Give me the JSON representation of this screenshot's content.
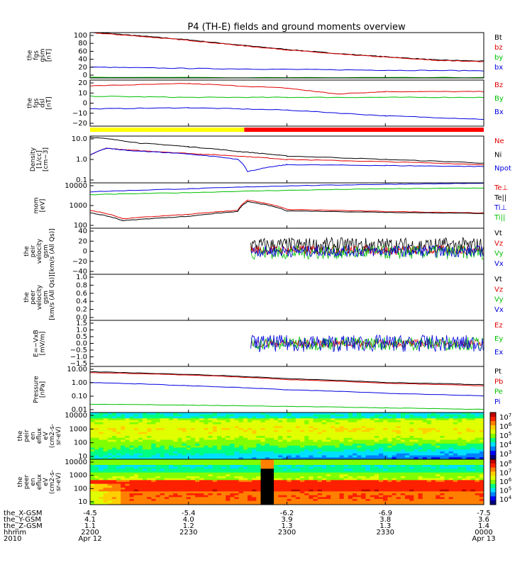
{
  "chart_data": {
    "type": "line",
    "title": "P4 (TH-E) fields and ground moments overview",
    "time_axis": {
      "ticks_hhmm": [
        "2200",
        "2230",
        "2300",
        "2330",
        "0000"
      ],
      "tick_dates": [
        "Apr 12",
        "",
        "",
        "",
        "Apr 13"
      ],
      "row_labels": [
        "the_X-GSM",
        "the_Y-GSM",
        "the_Z-GSM",
        "hhmm",
        "2010"
      ],
      "x_gsm": [
        "-4.5",
        "-5.4",
        "-6.2",
        "-6.9",
        "-7.5"
      ],
      "y_gsm": [
        "4.1",
        "4.0",
        "3.9",
        "3.8",
        "3.6"
      ],
      "z_gsm": [
        "1.1",
        "1.2",
        "1.3",
        "1.3",
        "1.4"
      ]
    },
    "panels": [
      {
        "id": "fgs_gsm",
        "ylabel": [
          "the",
          "fgs",
          "gsm",
          "[nT]"
        ],
        "ylim": [
          0,
          100
        ],
        "ticks": [
          "100",
          "80",
          "60",
          "40",
          "20",
          "0"
        ],
        "series": [
          {
            "name": "Bt",
            "color": "#000000",
            "x": [
              2200,
              2215,
              2230,
              2245,
              2300,
              2315,
              2330,
              2345,
              2400
            ],
            "y": [
              101,
              93,
              84,
              73,
              63,
              54,
              47,
              40,
              37
            ]
          },
          {
            "name": "bz",
            "color": "#e00000",
            "x": [
              2200,
              2215,
              2230,
              2245,
              2300,
              2315,
              2330,
              2345,
              2400
            ],
            "y": [
              100,
              92,
              83,
              72,
              62,
              53,
              46,
              39,
              36
            ]
          },
          {
            "name": "by",
            "color": "#00c000",
            "x": [
              2200,
              2400
            ],
            "y": [
              1,
              1
            ]
          },
          {
            "name": "bx",
            "color": "#0000e0",
            "x": [
              2200,
              2230,
              2300,
              2330,
              2400
            ],
            "y": [
              24,
              21,
              19,
              17,
              16
            ]
          }
        ]
      },
      {
        "id": "fgs_dsl",
        "ylabel": [
          "the",
          "fgs",
          "dsl",
          "[nT]"
        ],
        "ylim": [
          -20,
          20
        ],
        "ticks": [
          "20",
          "10",
          "0",
          "−10",
          "−20"
        ],
        "series": [
          {
            "name": "Bz",
            "color": "#e00000",
            "x": [
              2200,
              2230,
              2300,
              2315,
              2330,
              2400
            ],
            "y": [
              15,
              17,
              13,
              8,
              10,
              10
            ]
          },
          {
            "name": "By",
            "color": "#00c000",
            "x": [
              2200,
              2230,
              2300,
              2330,
              2400
            ],
            "y": [
              6,
              5,
              5,
              5,
              5
            ]
          },
          {
            "name": "Bx",
            "color": "#0000e0",
            "x": [
              2200,
              2230,
              2300,
              2330,
              2400
            ],
            "y": [
              -5,
              -4,
              -6,
              -11,
              -14
            ]
          }
        ]
      },
      {
        "id": "density",
        "ylabel": [
          "Density",
          "[1/cc]",
          "[cm−3]"
        ],
        "scale": "log",
        "ylim": [
          0.1,
          10
        ],
        "ticks": [
          "10.0",
          "1.0",
          "0.1"
        ],
        "series": [
          {
            "name": "Ne",
            "color": "#e00000",
            "x": [
              2200,
              2205,
              2212,
              2230,
              2245,
              2300,
              2330,
              2400
            ],
            "y": [
              1.5,
              3.0,
              2.5,
              1.8,
              1.4,
              1.0,
              0.8,
              0.6
            ]
          },
          {
            "name": "Ni",
            "color": "#000000",
            "x": [
              2200,
              2215,
              2230,
              2245,
              2300,
              2330,
              2400
            ],
            "y": [
              9.0,
              5.0,
              3.5,
              2.2,
              1.4,
              1.0,
              0.7
            ]
          },
          {
            "name": "Npot",
            "color": "#0000e0",
            "x": [
              2200,
              2205,
              2212,
              2230,
              2245,
              2248,
              2300,
              2330,
              2400
            ],
            "y": [
              1.5,
              3.0,
              2.4,
              1.7,
              1.0,
              0.3,
              0.6,
              0.55,
              0.5
            ]
          }
        ]
      },
      {
        "id": "mom_temp",
        "ylabel": [
          "mom",
          "[eV]"
        ],
        "scale": "log",
        "ylim": [
          50,
          10000
        ],
        "ticks": [
          "10000",
          "1000",
          "100"
        ],
        "series": [
          {
            "name": "Te⊥",
            "color": "#e00000",
            "x": [
              2200,
              2210,
              2230,
              2245,
              2248,
              2300,
              2330,
              2400
            ],
            "y": [
              400,
              150,
              250,
              400,
              1300,
              450,
              350,
              300
            ]
          },
          {
            "name": "Te||",
            "color": "#000000",
            "x": [
              2200,
              2210,
              2230,
              2245,
              2248,
              2300,
              2330,
              2400
            ],
            "y": [
              300,
              120,
              200,
              350,
              1100,
              380,
              320,
              280
            ]
          },
          {
            "name": "Ti⊥",
            "color": "#0000e0",
            "x": [
              2200,
              2230,
              2300,
              2330,
              2400
            ],
            "y": [
              3500,
              5000,
              7000,
              8500,
              9500
            ]
          },
          {
            "name": "Ti||",
            "color": "#00c000",
            "x": [
              2200,
              2230,
              2300,
              2330,
              2400
            ],
            "y": [
              2500,
              3200,
              4200,
              5000,
              5500
            ]
          }
        ]
      },
      {
        "id": "peir_velocity",
        "ylabel": [
          "the",
          "peir",
          "velocity",
          "gsm",
          "[km/s (All Qs)]"
        ],
        "ylim": [
          -40,
          40
        ],
        "ticks": [
          "40",
          "20",
          "0",
          "−20",
          "−40"
        ],
        "noise_start": 2249,
        "series": [
          {
            "name": "Vt",
            "color": "#000000",
            "base": 10,
            "amp": 14
          },
          {
            "name": "Vz",
            "color": "#e00000",
            "base": 2,
            "amp": 8
          },
          {
            "name": "Vy",
            "color": "#00c000",
            "base": -2,
            "amp": 12
          },
          {
            "name": "Vx",
            "color": "#0000e0",
            "base": 0,
            "amp": 10
          }
        ]
      },
      {
        "id": "peer_velocity",
        "ylabel": [
          "the",
          "peer",
          "velocity",
          "gsm",
          "[km/s (All Qs)]"
        ],
        "ylim": [
          0,
          1
        ],
        "ticks": [
          "1.0",
          "0.8",
          "0.6",
          "0.4",
          "0.2",
          "0.0"
        ],
        "series": [
          {
            "name": "Vt",
            "color": "#000000"
          },
          {
            "name": "Vz",
            "color": "#e00000"
          },
          {
            "name": "Vy",
            "color": "#00c000"
          },
          {
            "name": "Vx",
            "color": "#0000e0"
          }
        ]
      },
      {
        "id": "efield",
        "ylabel": [
          "E=−VxB",
          "[mV/m]"
        ],
        "ylim": [
          -1.5,
          1.5
        ],
        "ticks": [
          "1.5",
          "1.0",
          "0.5",
          "0.0",
          "−0.5",
          "−1.0",
          "−1.5"
        ],
        "noise_start": 2249,
        "series": [
          {
            "name": "Ez",
            "color": "#e00000",
            "base": 0,
            "amp": 0.25
          },
          {
            "name": "Ey",
            "color": "#00c000",
            "base": 0,
            "amp": 0.45
          },
          {
            "name": "Ex",
            "color": "#0000e0",
            "base": 0,
            "amp": 0.55
          }
        ]
      },
      {
        "id": "pressure",
        "ylabel": [
          "Pressure",
          "[nPa]"
        ],
        "scale": "log",
        "ylim": [
          0.01,
          10
        ],
        "ticks": [
          "10.00",
          "1.00",
          "0.10",
          "0.01"
        ],
        "series": [
          {
            "name": "Pt",
            "color": "#000000",
            "x": [
              2200,
              2230,
              2300,
              2330,
              2400
            ],
            "y": [
              4.5,
              3.0,
              1.6,
              0.9,
              0.65
            ]
          },
          {
            "name": "Pb",
            "color": "#e00000",
            "x": [
              2200,
              2230,
              2300,
              2330,
              2400
            ],
            "y": [
              4.0,
              2.7,
              1.4,
              0.8,
              0.55
            ]
          },
          {
            "name": "Pe",
            "color": "#00c000",
            "x": [
              2200,
              2230,
              2300,
              2330,
              2400
            ],
            "y": [
              0.035,
              0.03,
              0.025,
              0.02,
              0.016
            ]
          },
          {
            "name": "Pi",
            "color": "#0000e0",
            "x": [
              2200,
              2230,
              2300,
              2330,
              2400
            ],
            "y": [
              0.9,
              0.55,
              0.3,
              0.18,
              0.12
            ]
          }
        ]
      },
      {
        "id": "peir_eflux",
        "type": "heatmap",
        "ylabel": [
          "the",
          "peir",
          "en",
          "eflux",
          "eV",
          "(cm2-s-",
          "sr-eV)"
        ],
        "ticks": [
          "10000",
          "1000",
          "100",
          "10"
        ],
        "colorbar_ticks": [
          "7",
          "6",
          "5",
          "4",
          "3"
        ]
      },
      {
        "id": "peer_eflux",
        "type": "heatmap",
        "ylabel": [
          "the",
          "peer",
          "en",
          "eflux",
          "eV",
          "(cm2-s-",
          "sr-eV)"
        ],
        "ticks": [
          "10000",
          "1000",
          "100",
          "10"
        ],
        "colorbar_ticks": [
          "8",
          "7",
          "6",
          "5",
          "4"
        ]
      }
    ],
    "colorbar_base": "10",
    "mode_bar": [
      {
        "from": 2200,
        "to": 2247,
        "color": "#ffff00"
      },
      {
        "from": 2247,
        "to": 2400,
        "color": "#ff0000"
      }
    ]
  }
}
